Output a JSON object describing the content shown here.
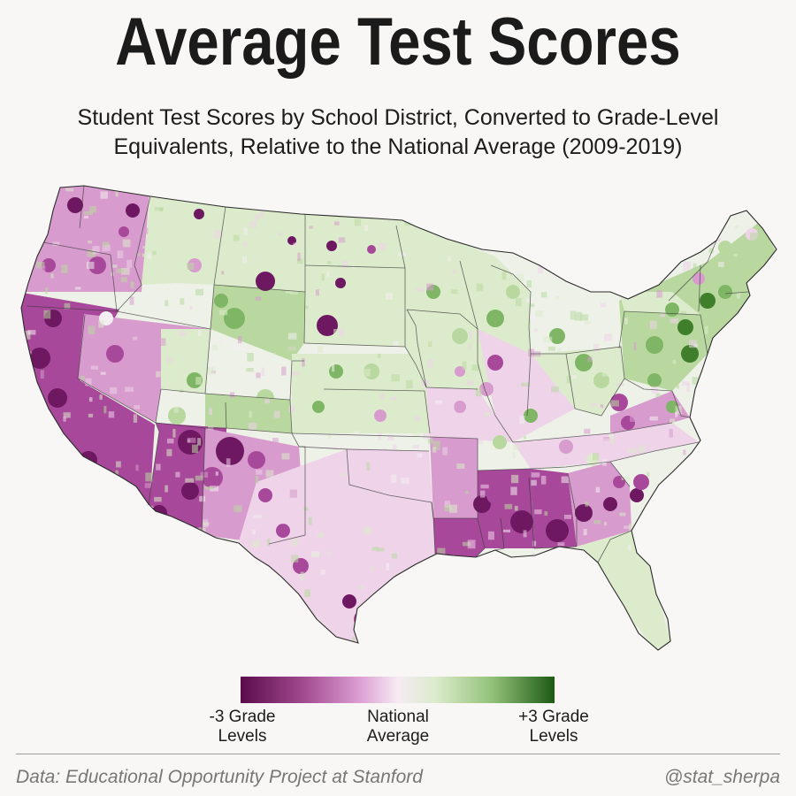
{
  "title": "Average Test Scores",
  "subtitle_line1": "Student Test Scores by School District, Converted to Grade-Level",
  "subtitle_line2": "Equivalents, Relative to the National Average (2009-2019)",
  "legend": {
    "left_line1": "-3 Grade",
    "left_line2": "Levels",
    "center_line1": "National",
    "center_line2": "Average",
    "right_line1": "+3 Grade",
    "right_line2": "Levels",
    "colors": [
      "#5a0c4b",
      "#a24a8f",
      "#dc9fd3",
      "#f6eaf3",
      "#dcebcd",
      "#93c27a",
      "#1d5a14"
    ]
  },
  "footer": {
    "source": "Data: Educational Opportunity Project at Stanford",
    "handle": "@stat_sherpa"
  }
}
